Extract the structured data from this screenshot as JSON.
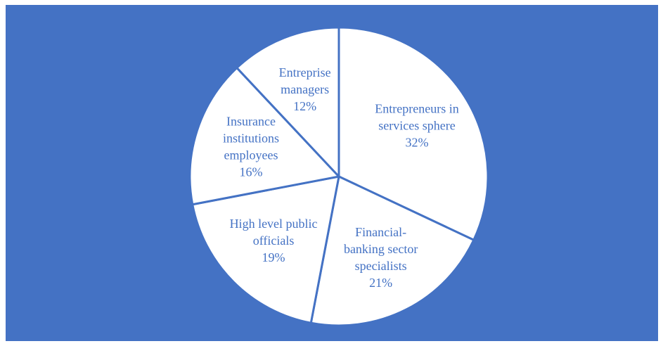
{
  "colors": {
    "background": "#4472c4",
    "slice_fill": "#ffffff",
    "slice_border": "#4472c4",
    "label_text": "#4472c4"
  },
  "chart_data": {
    "type": "pie",
    "title": "",
    "legend": "none",
    "slices": [
      {
        "label_lines": [
          "Entrepreneurs in",
          "services sphere"
        ],
        "percent_label": "32%",
        "value": 32
      },
      {
        "label_lines": [
          "Financial-",
          "banking sector",
          "specialists"
        ],
        "percent_label": "21%",
        "value": 21
      },
      {
        "label_lines": [
          "High level public",
          "officials"
        ],
        "percent_label": "19%",
        "value": 19
      },
      {
        "label_lines": [
          "Insurance",
          "institutions",
          "employees"
        ],
        "percent_label": "16%",
        "value": 16
      },
      {
        "label_lines": [
          "Entreprise",
          "managers"
        ],
        "percent_label": "12%",
        "value": 12
      }
    ]
  }
}
